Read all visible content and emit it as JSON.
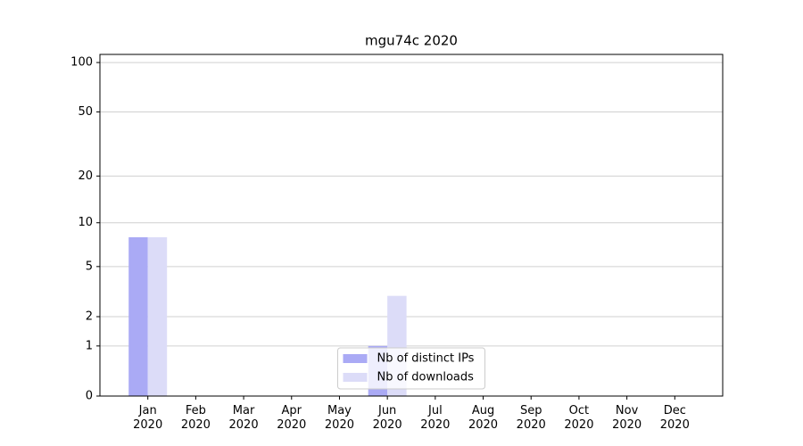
{
  "chart_data": {
    "type": "bar",
    "title": "mgu74c 2020",
    "categories": [
      "Jan 2020",
      "Feb 2020",
      "Mar 2020",
      "Apr 2020",
      "May 2020",
      "Jun 2020",
      "Jul 2020",
      "Aug 2020",
      "Sep 2020",
      "Oct 2020",
      "Nov 2020",
      "Dec 2020"
    ],
    "series": [
      {
        "name": "Nb of distinct IPs",
        "color": "#aaaaf5",
        "values": [
          8,
          0,
          0,
          0,
          0,
          1,
          0,
          0,
          0,
          0,
          0,
          0
        ]
      },
      {
        "name": "Nb of downloads",
        "color": "#dcdcf8",
        "values": [
          8,
          0,
          0,
          0,
          0,
          3,
          0,
          0,
          0,
          0,
          0,
          0
        ]
      }
    ],
    "yscale": "log1p",
    "ylim": [
      0,
      112
    ],
    "yticks": [
      0,
      1,
      2,
      5,
      10,
      20,
      50,
      100
    ],
    "grid": true,
    "legend": "lower center"
  }
}
